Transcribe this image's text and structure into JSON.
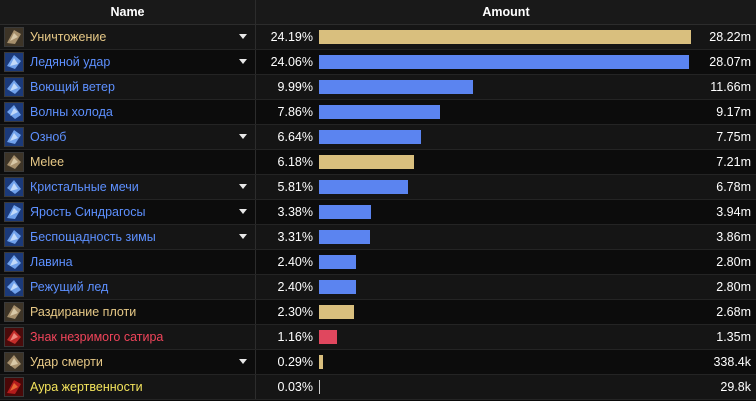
{
  "header": {
    "name_label": "Name",
    "amount_label": "Amount"
  },
  "colors": {
    "magic": "#5b84f0",
    "physical": "#d9bf7e",
    "fire": "#e0475e",
    "holy": "#f0df4f",
    "name_magic": "#5d90ff",
    "name_physical": "#e7c987",
    "name_fire": "#f0445a",
    "name_holy": "#f3e35c"
  },
  "max_percent": 24.19,
  "rows": [
    {
      "ability": "Уничтожение",
      "percent": 24.19,
      "percent_text": "24.19%",
      "amount": "28.22m",
      "school": "physical",
      "expandable": true,
      "icon": "obliterate-icon"
    },
    {
      "ability": "Ледяной удар",
      "percent": 24.06,
      "percent_text": "24.06%",
      "amount": "28.07m",
      "school": "magic",
      "expandable": true,
      "icon": "frost-strike-icon"
    },
    {
      "ability": "Воющий ветер",
      "percent": 9.99,
      "percent_text": "9.99%",
      "amount": "11.66m",
      "school": "magic",
      "expandable": false,
      "icon": "howling-blast-icon"
    },
    {
      "ability": "Волны холода",
      "percent": 7.86,
      "percent_text": "7.86%",
      "amount": "9.17m",
      "school": "magic",
      "expandable": false,
      "icon": "cold-wave-icon"
    },
    {
      "ability": "Озноб",
      "percent": 6.64,
      "percent_text": "6.64%",
      "amount": "7.75m",
      "school": "magic",
      "expandable": true,
      "icon": "chill-icon"
    },
    {
      "ability": "Melee",
      "percent": 6.18,
      "percent_text": "6.18%",
      "amount": "7.21m",
      "school": "physical",
      "expandable": false,
      "icon": "melee-icon"
    },
    {
      "ability": "Кристальные мечи",
      "percent": 5.81,
      "percent_text": "5.81%",
      "amount": "6.78m",
      "school": "magic",
      "expandable": true,
      "icon": "crystal-swords-icon"
    },
    {
      "ability": "Ярость Синдрагосы",
      "percent": 3.38,
      "percent_text": "3.38%",
      "amount": "3.94m",
      "school": "magic",
      "expandable": true,
      "icon": "sindragosa-fury-icon"
    },
    {
      "ability": "Беспощадность зимы",
      "percent": 3.31,
      "percent_text": "3.31%",
      "amount": "3.86m",
      "school": "magic",
      "expandable": true,
      "icon": "remorseless-winter-icon"
    },
    {
      "ability": "Лавина",
      "percent": 2.4,
      "percent_text": "2.40%",
      "amount": "2.80m",
      "school": "magic",
      "expandable": false,
      "icon": "avalanche-icon"
    },
    {
      "ability": "Режущий лед",
      "percent": 2.4,
      "percent_text": "2.40%",
      "amount": "2.80m",
      "school": "magic",
      "expandable": false,
      "icon": "razor-ice-icon"
    },
    {
      "ability": "Раздирание плоти",
      "percent": 2.3,
      "percent_text": "2.30%",
      "amount": "2.68m",
      "school": "physical",
      "expandable": false,
      "icon": "flesh-rend-icon"
    },
    {
      "ability": "Знак незримого сатира",
      "percent": 1.16,
      "percent_text": "1.16%",
      "amount": "1.35m",
      "school": "fire",
      "expandable": false,
      "icon": "unseen-satyr-mark-icon"
    },
    {
      "ability": "Удар смерти",
      "percent": 0.29,
      "percent_text": "0.29%",
      "amount": "338.4k",
      "school": "physical",
      "expandable": true,
      "icon": "death-strike-icon"
    },
    {
      "ability": "Аура жертвенности",
      "percent": 0.03,
      "percent_text": "0.03%",
      "amount": "29.8k",
      "school": "holy",
      "expandable": false,
      "icon": "sacrifice-aura-icon"
    }
  ]
}
